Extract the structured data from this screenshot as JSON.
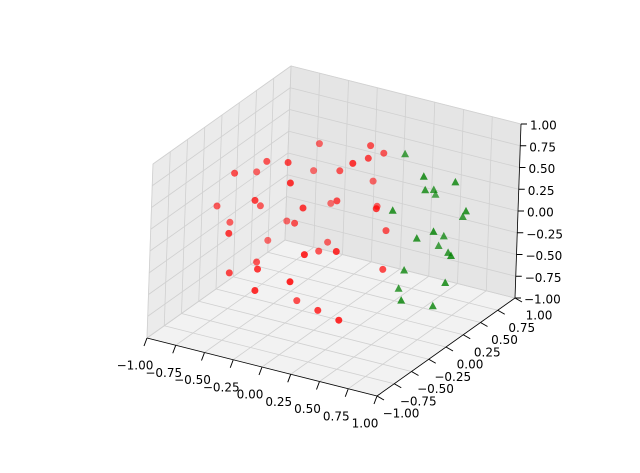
{
  "chart_data": {
    "type": "scatter3d",
    "xlim": [
      -1,
      1
    ],
    "ylim": [
      -1,
      1
    ],
    "zlim": [
      -1,
      1
    ],
    "xticks": [
      {
        "value": -1,
        "label": "−1.00"
      },
      {
        "value": -0.75,
        "label": "−0.75"
      },
      {
        "value": -0.5,
        "label": "−0.50"
      },
      {
        "value": -0.25,
        "label": "−0.25"
      },
      {
        "value": 0,
        "label": "0.00"
      },
      {
        "value": 0.25,
        "label": "0.25"
      },
      {
        "value": 0.5,
        "label": "0.50"
      },
      {
        "value": 0.75,
        "label": "0.75"
      },
      {
        "value": 1,
        "label": "1.00"
      }
    ],
    "yticks": [
      {
        "value": -1,
        "label": "−1.00"
      },
      {
        "value": -0.75,
        "label": "−0.75"
      },
      {
        "value": -0.5,
        "label": "−0.50"
      },
      {
        "value": -0.25,
        "label": "−0.25"
      },
      {
        "value": 0,
        "label": "0.00"
      },
      {
        "value": 0.25,
        "label": "0.25"
      },
      {
        "value": 0.5,
        "label": "0.50"
      },
      {
        "value": 0.75,
        "label": "0.75"
      },
      {
        "value": 1,
        "label": "1.00"
      }
    ],
    "zticks": [
      {
        "value": -1,
        "label": "−1.00"
      },
      {
        "value": -0.75,
        "label": "−0.75"
      },
      {
        "value": -0.5,
        "label": "−0.50"
      },
      {
        "value": -0.25,
        "label": "−0.25"
      },
      {
        "value": 0,
        "label": "0.00"
      },
      {
        "value": 0.25,
        "label": "0.25"
      },
      {
        "value": 0.5,
        "label": "0.50"
      },
      {
        "value": 0.75,
        "label": "0.75"
      },
      {
        "value": 1,
        "label": "1.00"
      }
    ],
    "grid": true,
    "series": [
      {
        "color": "#ff0000",
        "marker": "circle",
        "x": [
          -0.8,
          -0.6,
          -0.5,
          -0.3,
          -0.1,
          0.1,
          0.2,
          -0.7,
          -0.4,
          -0.2,
          0.0,
          0.3,
          -0.9,
          -0.6,
          -0.3,
          -0.1,
          0.2,
          -0.5,
          -0.8,
          -0.2,
          0.1,
          -0.4,
          -0.6,
          0.0,
          0.3,
          -0.7,
          -0.3,
          -0.1,
          0.1,
          -0.5,
          -0.2,
          0.2,
          -0.9,
          -0.4,
          0.0,
          -0.6,
          -0.3,
          0.1,
          -0.1,
          -0.7
        ],
        "y": [
          0.2,
          -0.5,
          0.6,
          -0.2,
          0.8,
          -0.6,
          0.4,
          -0.3,
          0.1,
          -0.8,
          0.5,
          -0.4,
          0.0,
          0.7,
          0.3,
          -0.3,
          -0.1,
          -0.7,
          0.4,
          0.9,
          0.6,
          -0.5,
          0.0,
          -0.2,
          0.1,
          0.5,
          -0.6,
          0.2,
          -0.8,
          0.8,
          0.4,
          -0.3,
          -0.2,
          0.6,
          0.7,
          -0.1,
          0.0,
          0.3,
          -0.5,
          0.1
        ],
        "z": [
          0.3,
          -0.4,
          0.5,
          0.8,
          -0.2,
          0.1,
          -0.6,
          0.6,
          -0.1,
          -0.3,
          0.7,
          -0.7,
          -0.2,
          0.1,
          -0.5,
          0.4,
          0.9,
          0.2,
          -0.6,
          0.0,
          -0.3,
          0.5,
          0.6,
          -0.8,
          0.3,
          -0.4,
          -0.2,
          0.2,
          -0.1,
          -0.3,
          0.4,
          0.0,
          0.1,
          -0.6,
          0.5,
          -0.5,
          -0.9,
          0.7,
          0.8,
          0.0
        ]
      },
      {
        "color": "#008000",
        "marker": "triangle",
        "x": [
          0.6,
          0.8,
          0.5,
          0.7,
          0.9,
          0.4,
          0.6,
          0.8,
          0.5,
          0.7,
          0.3,
          0.6,
          0.8,
          0.5,
          0.7,
          0.4,
          0.9,
          0.6,
          0.5,
          0.7
        ],
        "y": [
          0.3,
          0.1,
          0.6,
          0.5,
          0.2,
          0.8,
          0.0,
          0.4,
          0.2,
          0.7,
          0.5,
          0.6,
          0.3,
          0.0,
          0.1,
          0.3,
          0.4,
          0.2,
          0.7,
          0.3
        ],
        "z": [
          0.5,
          0.2,
          0.3,
          -0.3,
          -0.1,
          0.1,
          -0.6,
          0.6,
          -0.4,
          0.0,
          0.7,
          -0.2,
          -0.5,
          0.4,
          0.8,
          -0.7,
          0.3,
          0.0,
          -0.4,
          -0.8
        ]
      }
    ]
  }
}
